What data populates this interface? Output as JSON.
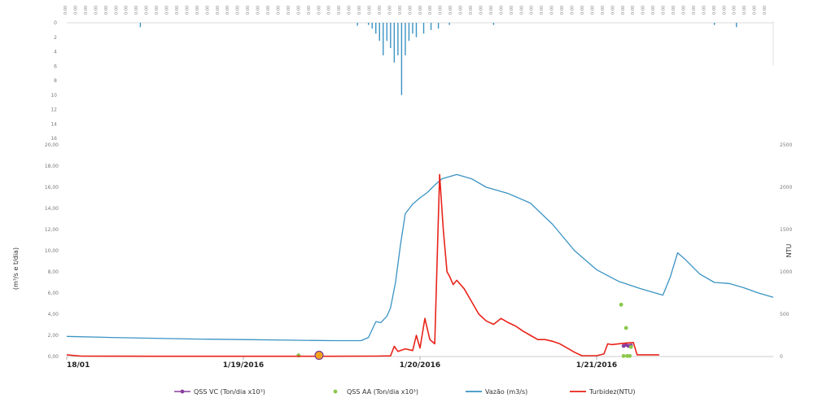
{
  "chart_data": [
    {
      "type": "bar",
      "panel": "rainfall",
      "x_tick_label": "0:00",
      "y_ticks": [
        "0",
        "2",
        "4",
        "6",
        "8",
        "10",
        "12",
        "14",
        "16"
      ],
      "ylim": [
        0,
        16
      ],
      "inverted": true,
      "color": "#3a93c3",
      "bars": [
        {
          "x": "1/18 10:00",
          "v": 0.6
        },
        {
          "x": "1/19 15:30",
          "v": 0.4
        },
        {
          "x": "1/19 17:00",
          "v": 0.3
        },
        {
          "x": "1/19 17:30",
          "v": 0.8
        },
        {
          "x": "1/19 18:00",
          "v": 1.5
        },
        {
          "x": "1/19 18:30",
          "v": 2.5
        },
        {
          "x": "1/19 19:00",
          "v": 4.5
        },
        {
          "x": "1/19 19:30",
          "v": 2.5
        },
        {
          "x": "1/19 20:00",
          "v": 3.5
        },
        {
          "x": "1/19 20:30",
          "v": 5.5
        },
        {
          "x": "1/19 21:00",
          "v": 4.5
        },
        {
          "x": "1/19 21:30",
          "v": 10.0
        },
        {
          "x": "1/19 22:00",
          "v": 4.5
        },
        {
          "x": "1/19 22:30",
          "v": 2.5
        },
        {
          "x": "1/19 23:00",
          "v": 1.5
        },
        {
          "x": "1/19 23:30",
          "v": 2.0
        },
        {
          "x": "1/20 00:30",
          "v": 1.5
        },
        {
          "x": "1/20 01:30",
          "v": 1.0
        },
        {
          "x": "1/20 02:30",
          "v": 0.8
        },
        {
          "x": "1/20 04:00",
          "v": 0.3
        },
        {
          "x": "1/20 10:00",
          "v": 0.3
        },
        {
          "x": "1/21 16:00",
          "v": 0.3
        },
        {
          "x": "1/21 19:00",
          "v": 0.6
        }
      ]
    },
    {
      "type": "line",
      "panel": "main",
      "x_start": "1/18/2016 00:00",
      "x_end": "1/22/2016 00:00",
      "x_tick_labels": [
        {
          "x": "1/18 00:00",
          "label": "18/01"
        },
        {
          "x": "1/19 00:00",
          "label": "1/19/2016"
        },
        {
          "x": "1/20 00:00",
          "label": "1/20/2016"
        },
        {
          "x": "1/21 00:00",
          "label": "1/21/2016"
        }
      ],
      "ylabel_left": "(m³/s e t/dia)",
      "ylabel_right": "NTU",
      "y_left_ticks": [
        "0,00",
        "2,00",
        "4,00",
        "6,00",
        "8,00",
        "10,00",
        "12,00",
        "14,00",
        "16,00",
        "18,00",
        "20,00"
      ],
      "y_left_lim": [
        0,
        20
      ],
      "y_right_ticks": [
        "0",
        "500",
        "1000",
        "1500",
        "2000",
        "2500"
      ],
      "y_right_lim": [
        0,
        2500
      ],
      "legend_position": "bottom",
      "series": [
        {
          "name": "QSS VC (Ton/dia x10³)",
          "axis": "left",
          "color": "#8b3fa0",
          "marker": "circle",
          "points": [
            {
              "x": "1/19 07:30",
              "y": 0.1
            },
            {
              "x": "1/21 03:40",
              "y": 1.0
            },
            {
              "x": "1/21 04:00",
              "y": 1.1
            },
            {
              "x": "1/21 04:20",
              "y": 1.0
            },
            {
              "x": "1/21 04:40",
              "y": 1.05
            }
          ]
        },
        {
          "name": "QSS AA (Ton/dia x10³)",
          "axis": "left",
          "color": "#8ac84a",
          "marker": "circle",
          "points": [
            {
              "x": "1/19 07:30",
              "y": 0.1
            },
            {
              "x": "1/21 03:20",
              "y": 4.9
            },
            {
              "x": "1/21 03:40",
              "y": 0.05
            },
            {
              "x": "1/21 04:00",
              "y": 2.7
            },
            {
              "x": "1/21 04:10",
              "y": 0.05
            },
            {
              "x": "1/21 04:30",
              "y": 0.05
            },
            {
              "x": "1/21 04:40",
              "y": 0.9
            }
          ]
        },
        {
          "name": "Vazão (m3/s)",
          "axis": "left",
          "color": "#3a93c3",
          "points": [
            {
              "x": "1/18 00:00",
              "y": 1.9
            },
            {
              "x": "1/18 06:00",
              "y": 1.8
            },
            {
              "x": "1/18 12:00",
              "y": 1.72
            },
            {
              "x": "1/18 18:00",
              "y": 1.65
            },
            {
              "x": "1/19 00:00",
              "y": 1.6
            },
            {
              "x": "1/19 06:00",
              "y": 1.55
            },
            {
              "x": "1/19 12:00",
              "y": 1.5
            },
            {
              "x": "1/19 16:00",
              "y": 1.5
            },
            {
              "x": "1/19 17:00",
              "y": 1.8
            },
            {
              "x": "1/19 18:00",
              "y": 3.3
            },
            {
              "x": "1/19 18:40",
              "y": 3.2
            },
            {
              "x": "1/19 19:30",
              "y": 3.8
            },
            {
              "x": "1/19 20:00",
              "y": 4.6
            },
            {
              "x": "1/19 20:40",
              "y": 7.0
            },
            {
              "x": "1/19 21:20",
              "y": 10.5
            },
            {
              "x": "1/19 22:00",
              "y": 13.5
            },
            {
              "x": "1/19 23:00",
              "y": 14.4
            },
            {
              "x": "1/20 00:00",
              "y": 15.0
            },
            {
              "x": "1/20 01:00",
              "y": 15.5
            },
            {
              "x": "1/20 02:00",
              "y": 16.2
            },
            {
              "x": "1/20 03:00",
              "y": 16.8
            },
            {
              "x": "1/20 05:00",
              "y": 17.2
            },
            {
              "x": "1/20 07:00",
              "y": 16.8
            },
            {
              "x": "1/20 09:00",
              "y": 16.0
            },
            {
              "x": "1/20 12:00",
              "y": 15.4
            },
            {
              "x": "1/20 15:00",
              "y": 14.5
            },
            {
              "x": "1/20 18:00",
              "y": 12.5
            },
            {
              "x": "1/20 21:00",
              "y": 10.0
            },
            {
              "x": "1/21 00:00",
              "y": 8.2
            },
            {
              "x": "1/21 03:00",
              "y": 7.1
            },
            {
              "x": "1/21 06:00",
              "y": 6.4
            },
            {
              "x": "1/21 09:00",
              "y": 5.8
            },
            {
              "x": "1/21 10:00",
              "y": 7.5
            },
            {
              "x": "1/21 11:00",
              "y": 9.8
            },
            {
              "x": "1/21 12:00",
              "y": 9.2
            },
            {
              "x": "1/21 14:00",
              "y": 7.8
            },
            {
              "x": "1/21 16:00",
              "y": 7.0
            },
            {
              "x": "1/21 18:00",
              "y": 6.9
            },
            {
              "x": "1/21 20:00",
              "y": 6.5
            },
            {
              "x": "1/21 22:00",
              "y": 6.0
            },
            {
              "x": "1/22 00:00",
              "y": 5.6
            }
          ]
        },
        {
          "name": "Turbidez(NTU)",
          "axis": "right",
          "color": "#e8231a",
          "points": [
            {
              "x": "1/18 00:00",
              "y": 20
            },
            {
              "x": "1/18 02:00",
              "y": 5
            },
            {
              "x": "1/18 12:00",
              "y": 3
            },
            {
              "x": "1/19 12:00",
              "y": 3
            },
            {
              "x": "1/19 18:00",
              "y": 5
            },
            {
              "x": "1/19 20:00",
              "y": 8
            },
            {
              "x": "1/19 20:30",
              "y": 120
            },
            {
              "x": "1/19 21:00",
              "y": 60
            },
            {
              "x": "1/19 22:00",
              "y": 90
            },
            {
              "x": "1/19 23:00",
              "y": 70
            },
            {
              "x": "1/19 23:30",
              "y": 250
            },
            {
              "x": "1/20 00:00",
              "y": 100
            },
            {
              "x": "1/20 00:40",
              "y": 450
            },
            {
              "x": "1/20 01:20",
              "y": 200
            },
            {
              "x": "1/20 02:00",
              "y": 150
            },
            {
              "x": "1/20 02:40",
              "y": 2150
            },
            {
              "x": "1/20 03:10",
              "y": 1500
            },
            {
              "x": "1/20 03:40",
              "y": 1000
            },
            {
              "x": "1/20 04:00",
              "y": 950
            },
            {
              "x": "1/20 04:30",
              "y": 850
            },
            {
              "x": "1/20 05:00",
              "y": 900
            },
            {
              "x": "1/20 06:00",
              "y": 800
            },
            {
              "x": "1/20 07:00",
              "y": 650
            },
            {
              "x": "1/20 08:00",
              "y": 500
            },
            {
              "x": "1/20 09:00",
              "y": 420
            },
            {
              "x": "1/20 10:00",
              "y": 380
            },
            {
              "x": "1/20 11:00",
              "y": 450
            },
            {
              "x": "1/20 12:00",
              "y": 400
            },
            {
              "x": "1/20 13:00",
              "y": 360
            },
            {
              "x": "1/20 14:00",
              "y": 300
            },
            {
              "x": "1/20 15:00",
              "y": 250
            },
            {
              "x": "1/20 16:00",
              "y": 200
            },
            {
              "x": "1/20 17:00",
              "y": 200
            },
            {
              "x": "1/20 18:00",
              "y": 180
            },
            {
              "x": "1/20 19:00",
              "y": 150
            },
            {
              "x": "1/20 20:00",
              "y": 100
            },
            {
              "x": "1/20 21:00",
              "y": 50
            },
            {
              "x": "1/20 22:00",
              "y": 10
            },
            {
              "x": "1/21 00:00",
              "y": 10
            },
            {
              "x": "1/21 01:00",
              "y": 30
            },
            {
              "x": "1/21 01:30",
              "y": 150
            },
            {
              "x": "1/21 02:00",
              "y": 140
            },
            {
              "x": "1/21 03:00",
              "y": 150
            },
            {
              "x": "1/21 04:00",
              "y": 160
            },
            {
              "x": "1/21 05:00",
              "y": 165
            },
            {
              "x": "1/21 05:30",
              "y": 20
            },
            {
              "x": "1/21 07:00",
              "y": 20
            },
            {
              "x": "1/21 08:30",
              "y": 20
            }
          ]
        }
      ]
    }
  ]
}
